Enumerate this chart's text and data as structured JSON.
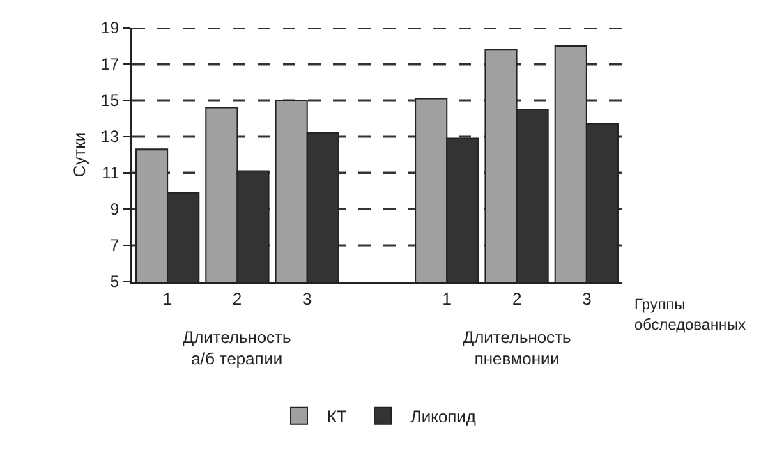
{
  "chart_data": {
    "type": "bar",
    "ylabel": "Сутки",
    "xlabel": "Группы обследованных",
    "categories": [
      "1",
      "2",
      "3",
      null,
      "1",
      "2",
      "3"
    ],
    "series": [
      {
        "name": "КТ",
        "color": "#a0a0a0",
        "values": [
          12.3,
          14.6,
          15.0,
          null,
          15.1,
          17.8,
          18.0
        ]
      },
      {
        "name": "Ликопид",
        "color": "#333333",
        "values": [
          9.9,
          11.1,
          13.2,
          null,
          12.9,
          14.5,
          13.7
        ]
      }
    ],
    "ylim": [
      5,
      19
    ],
    "yticks": [
      5,
      7,
      9,
      11,
      13,
      15,
      17,
      19
    ],
    "grid": "y",
    "legend": "bottom",
    "annotations": [
      "Длительность а/б терапии",
      "Длительность пневмонии"
    ]
  }
}
